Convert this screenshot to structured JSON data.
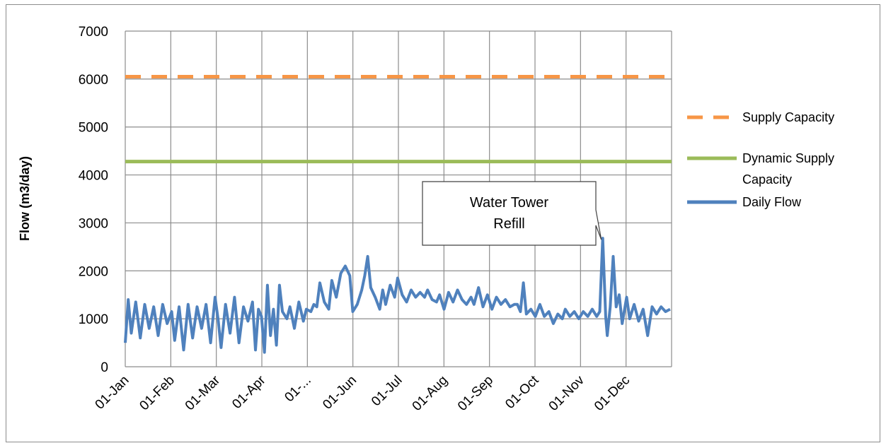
{
  "chart_data": {
    "type": "line",
    "title": "",
    "xlabel": "",
    "ylabel": "Flow (m3/day)",
    "ylim": [
      0,
      7000
    ],
    "yticks": [
      0,
      1000,
      2000,
      3000,
      4000,
      5000,
      6000,
      7000
    ],
    "grid": true,
    "legend_position": "right",
    "categories": [
      "01-Jan",
      "01-Feb",
      "01-Mar",
      "01-Apr",
      "01-...",
      "01-Jun",
      "01-Jul",
      "01-Aug",
      "01-Sep",
      "01-Oct",
      "01-Nov",
      "01-Dec"
    ],
    "series": [
      {
        "name": "Supply Capacity",
        "style": "dashed",
        "color": "#F79646",
        "constant": 6050
      },
      {
        "name": "Dynamic Supply Capacity",
        "style": "solid",
        "color": "#9BBB59",
        "constant": 4280
      },
      {
        "name": "Daily Flow",
        "style": "solid",
        "color": "#4F81BD",
        "points": [
          [
            0,
            500
          ],
          [
            2,
            1400
          ],
          [
            4,
            700
          ],
          [
            7,
            1350
          ],
          [
            10,
            600
          ],
          [
            13,
            1300
          ],
          [
            16,
            800
          ],
          [
            19,
            1250
          ],
          [
            22,
            650
          ],
          [
            25,
            1300
          ],
          [
            28,
            900
          ],
          [
            31,
            1150
          ],
          [
            33,
            550
          ],
          [
            36,
            1250
          ],
          [
            39,
            350
          ],
          [
            42,
            1300
          ],
          [
            45,
            600
          ],
          [
            48,
            1250
          ],
          [
            51,
            800
          ],
          [
            54,
            1300
          ],
          [
            57,
            500
          ],
          [
            60,
            1450
          ],
          [
            62,
            1000
          ],
          [
            64,
            400
          ],
          [
            67,
            1300
          ],
          [
            70,
            700
          ],
          [
            73,
            1450
          ],
          [
            76,
            500
          ],
          [
            79,
            1250
          ],
          [
            82,
            950
          ],
          [
            85,
            1350
          ],
          [
            87,
            350
          ],
          [
            89,
            1200
          ],
          [
            91,
            1050
          ],
          [
            93,
            300
          ],
          [
            95,
            1700
          ],
          [
            97,
            650
          ],
          [
            99,
            1200
          ],
          [
            101,
            450
          ],
          [
            103,
            1700
          ],
          [
            105,
            1150
          ],
          [
            108,
            1000
          ],
          [
            110,
            1250
          ],
          [
            113,
            800
          ],
          [
            116,
            1350
          ],
          [
            119,
            950
          ],
          [
            121,
            1200
          ],
          [
            124,
            1150
          ],
          [
            126,
            1300
          ],
          [
            128,
            1250
          ],
          [
            130,
            1750
          ],
          [
            133,
            1350
          ],
          [
            136,
            1200
          ],
          [
            138,
            1800
          ],
          [
            141,
            1450
          ],
          [
            144,
            1950
          ],
          [
            147,
            2100
          ],
          [
            150,
            1900
          ],
          [
            152,
            1150
          ],
          [
            155,
            1300
          ],
          [
            158,
            1600
          ],
          [
            160,
            1900
          ],
          [
            162,
            2300
          ],
          [
            164,
            1650
          ],
          [
            167,
            1450
          ],
          [
            170,
            1200
          ],
          [
            172,
            1600
          ],
          [
            174,
            1300
          ],
          [
            177,
            1700
          ],
          [
            180,
            1450
          ],
          [
            182,
            1850
          ],
          [
            185,
            1500
          ],
          [
            188,
            1350
          ],
          [
            191,
            1600
          ],
          [
            194,
            1450
          ],
          [
            197,
            1550
          ],
          [
            200,
            1450
          ],
          [
            202,
            1600
          ],
          [
            205,
            1400
          ],
          [
            208,
            1350
          ],
          [
            210,
            1500
          ],
          [
            213,
            1200
          ],
          [
            216,
            1550
          ],
          [
            219,
            1350
          ],
          [
            222,
            1600
          ],
          [
            225,
            1400
          ],
          [
            228,
            1300
          ],
          [
            231,
            1450
          ],
          [
            233,
            1300
          ],
          [
            236,
            1650
          ],
          [
            239,
            1250
          ],
          [
            242,
            1500
          ],
          [
            245,
            1200
          ],
          [
            248,
            1450
          ],
          [
            251,
            1300
          ],
          [
            254,
            1400
          ],
          [
            257,
            1250
          ],
          [
            260,
            1300
          ],
          [
            262,
            1300
          ],
          [
            264,
            1150
          ],
          [
            266,
            1750
          ],
          [
            268,
            1100
          ],
          [
            271,
            1200
          ],
          [
            274,
            1050
          ],
          [
            277,
            1300
          ],
          [
            280,
            1050
          ],
          [
            283,
            1150
          ],
          [
            286,
            900
          ],
          [
            289,
            1100
          ],
          [
            292,
            1000
          ],
          [
            294,
            1200
          ],
          [
            297,
            1050
          ],
          [
            300,
            1150
          ],
          [
            303,
            1000
          ],
          [
            306,
            1150
          ],
          [
            309,
            1050
          ],
          [
            312,
            1200
          ],
          [
            315,
            1050
          ],
          [
            317,
            1150
          ],
          [
            319,
            2680
          ],
          [
            321,
            1050
          ],
          [
            322,
            650
          ],
          [
            324,
            1250
          ],
          [
            326,
            2300
          ],
          [
            328,
            1250
          ],
          [
            330,
            1500
          ],
          [
            332,
            900
          ],
          [
            335,
            1450
          ],
          [
            337,
            1000
          ],
          [
            340,
            1300
          ],
          [
            343,
            950
          ],
          [
            346,
            1200
          ],
          [
            349,
            650
          ],
          [
            352,
            1250
          ],
          [
            355,
            1100
          ],
          [
            358,
            1250
          ],
          [
            361,
            1150
          ],
          [
            364,
            1200
          ]
        ]
      }
    ],
    "annotation": {
      "lines": [
        "Water Tower",
        "Refill"
      ],
      "points_to_day": 319,
      "points_to_value": 2680
    }
  }
}
